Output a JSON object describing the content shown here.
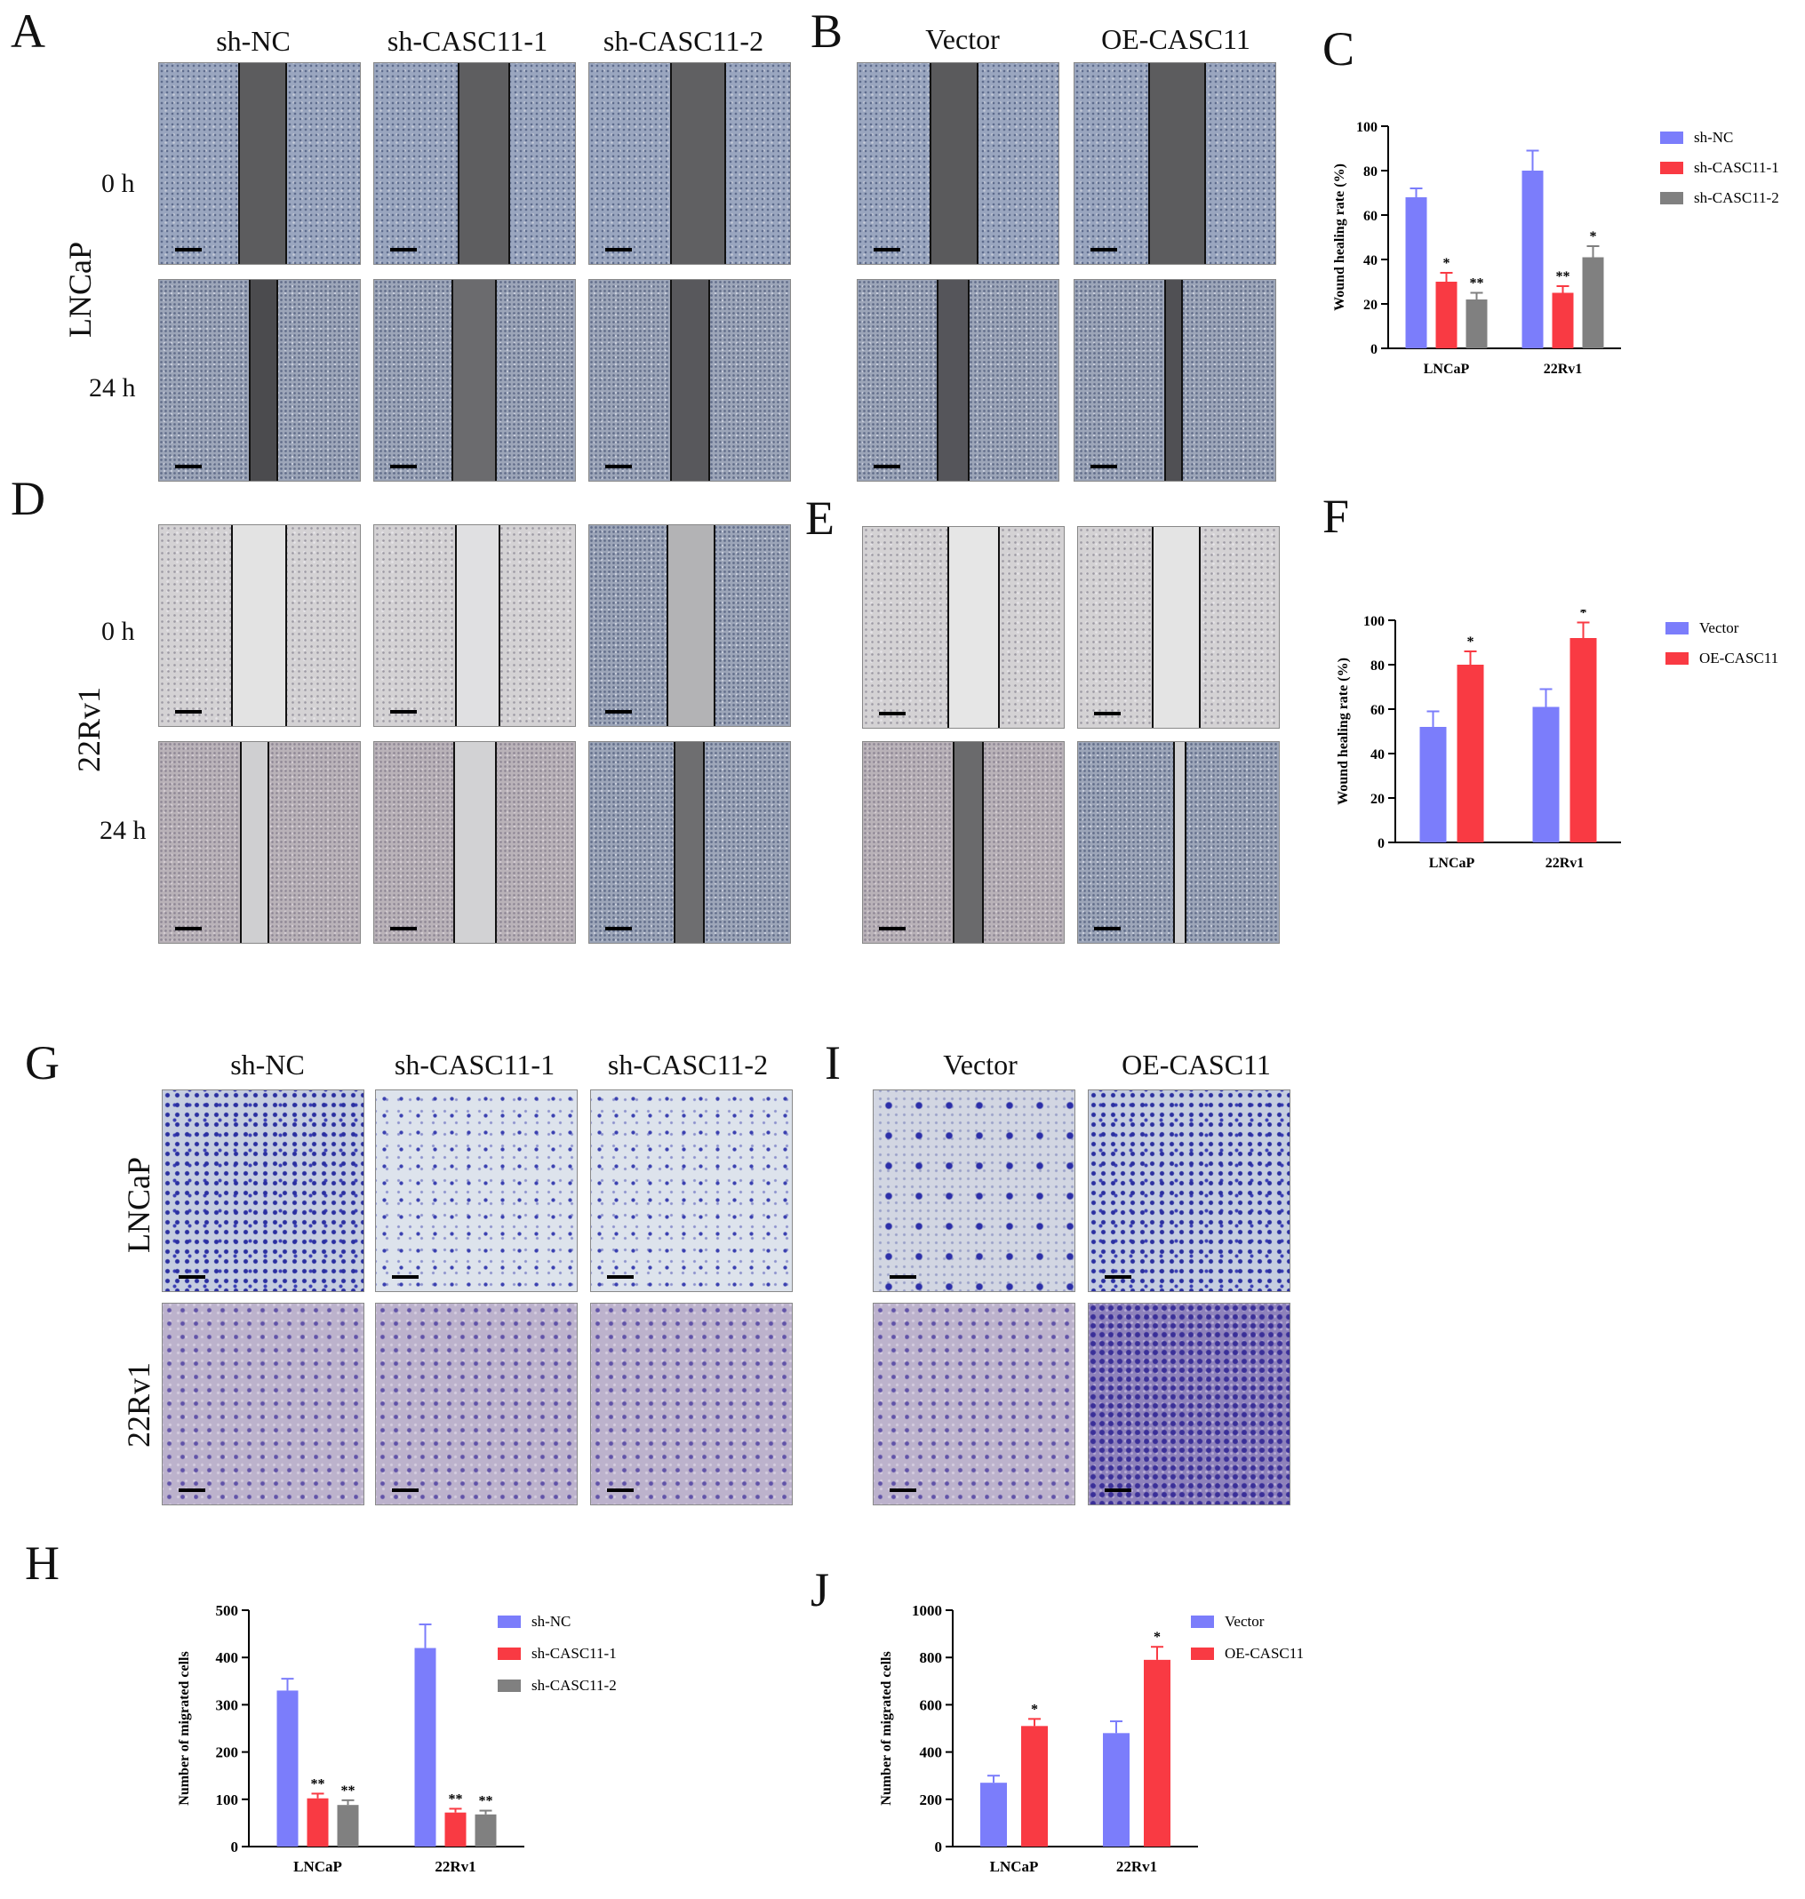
{
  "panels": {
    "A": "A",
    "B": "B",
    "C": "C",
    "D": "D",
    "E": "E",
    "F": "F",
    "G": "G",
    "H": "H",
    "I": "I",
    "J": "J"
  },
  "columns_sh": [
    "sh-NC",
    "sh-CASC11-1",
    "sh-CASC11-2"
  ],
  "columns_oe": [
    "Vector",
    "OE-CASC11"
  ],
  "time_labels": [
    "0 h",
    "24 h"
  ],
  "cell_lines": [
    "LNCaP",
    "22Rv1"
  ],
  "colors": {
    "blue": "#7b7dfb",
    "red": "#f93a43",
    "grey": "#808080"
  },
  "chart_data": [
    {
      "id": "C",
      "type": "bar",
      "ylabel": "Wound healing rate (%)",
      "ylim": [
        0,
        100
      ],
      "yticks": [
        0,
        20,
        40,
        60,
        80,
        100
      ],
      "categories": [
        "LNCaP",
        "22Rv1"
      ],
      "series": [
        {
          "name": "sh-NC",
          "color": "#7b7dfb",
          "values": [
            68,
            80
          ],
          "errors": [
            4,
            9
          ],
          "sig": [
            "",
            ""
          ]
        },
        {
          "name": "sh-CASC11-1",
          "color": "#f93a43",
          "values": [
            30,
            25
          ],
          "errors": [
            4,
            3
          ],
          "sig": [
            "*",
            "**"
          ]
        },
        {
          "name": "sh-CASC11-2",
          "color": "#808080",
          "values": [
            22,
            41
          ],
          "errors": [
            3,
            5
          ],
          "sig": [
            "**",
            "*"
          ]
        }
      ],
      "legend": "right"
    },
    {
      "id": "F",
      "type": "bar",
      "ylabel": "Wound healing rate (%)",
      "ylim": [
        0,
        100
      ],
      "yticks": [
        0,
        20,
        40,
        60,
        80,
        100
      ],
      "categories": [
        "LNCaP",
        "22Rv1"
      ],
      "series": [
        {
          "name": "Vector",
          "color": "#7b7dfb",
          "values": [
            52,
            61
          ],
          "errors": [
            7,
            8
          ],
          "sig": [
            "",
            ""
          ]
        },
        {
          "name": "OE-CASC11",
          "color": "#f93a43",
          "values": [
            80,
            92
          ],
          "errors": [
            6,
            7
          ],
          "sig": [
            "*",
            "*"
          ]
        }
      ],
      "legend": "right"
    },
    {
      "id": "H",
      "type": "bar",
      "ylabel": "Number of migrated cells",
      "ylim": [
        0,
        500
      ],
      "yticks": [
        0,
        100,
        200,
        300,
        400,
        500
      ],
      "categories": [
        "LNCaP",
        "22Rv1"
      ],
      "series": [
        {
          "name": "sh-NC",
          "color": "#7b7dfb",
          "values": [
            330,
            420
          ],
          "errors": [
            25,
            50
          ],
          "sig": [
            "",
            ""
          ]
        },
        {
          "name": "sh-CASC11-1",
          "color": "#f93a43",
          "values": [
            102,
            72
          ],
          "errors": [
            10,
            8
          ],
          "sig": [
            "**",
            "**"
          ]
        },
        {
          "name": "sh-CASC11-2",
          "color": "#808080",
          "values": [
            88,
            68
          ],
          "errors": [
            10,
            8
          ],
          "sig": [
            "**",
            "**"
          ]
        }
      ],
      "legend": "right"
    },
    {
      "id": "J",
      "type": "bar",
      "ylabel": "Number of migrated cells",
      "ylim": [
        0,
        1000
      ],
      "yticks": [
        0,
        200,
        400,
        600,
        800,
        1000
      ],
      "categories": [
        "LNCaP",
        "22Rv1"
      ],
      "series": [
        {
          "name": "Vector",
          "color": "#7b7dfb",
          "values": [
            270,
            480
          ],
          "errors": [
            30,
            50
          ],
          "sig": [
            "",
            ""
          ]
        },
        {
          "name": "OE-CASC11",
          "color": "#f93a43",
          "values": [
            510,
            790
          ],
          "errors": [
            30,
            55
          ],
          "sig": [
            "*",
            "*"
          ]
        }
      ],
      "legend": "right"
    }
  ]
}
